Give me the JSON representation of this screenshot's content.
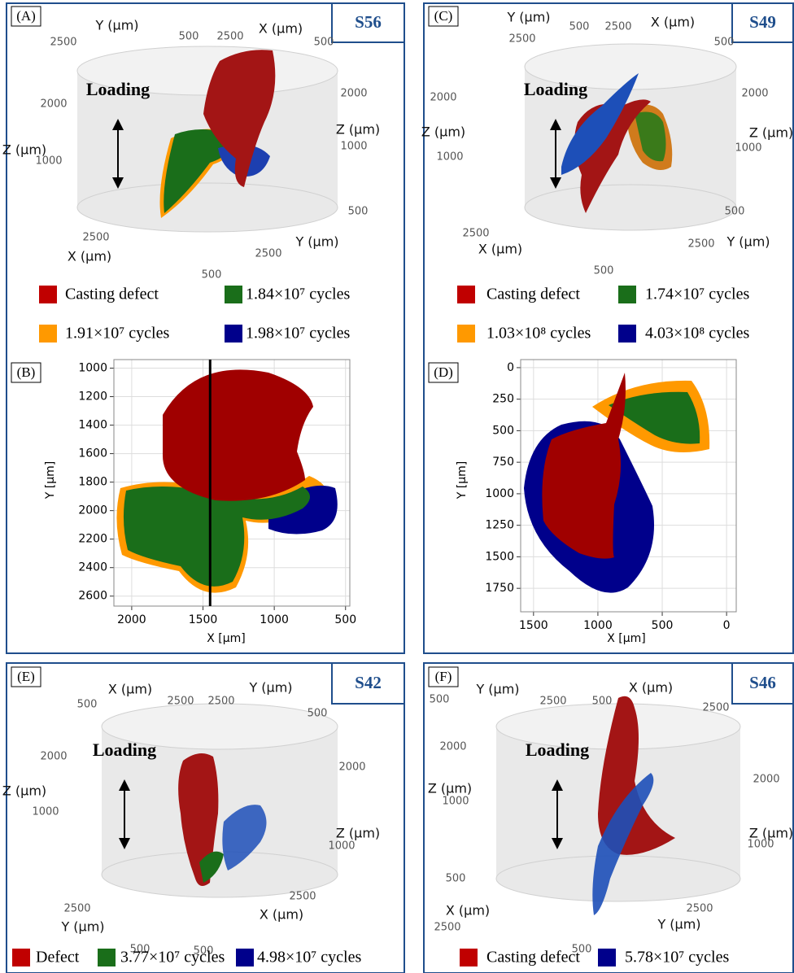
{
  "panels": [
    {
      "label": "(A)",
      "sample": "S56",
      "loading": "Loading",
      "axis_texts": [
        "Y (μm)",
        "500",
        "2500",
        "X (μm)",
        "500",
        "2500",
        "2000",
        "Z (μm)",
        "1000",
        "2000",
        "Z (μm)",
        "1000",
        "500",
        "2500",
        "X (μm)",
        "Y (μm)",
        "2500",
        "500"
      ],
      "legend": [
        {
          "name": "Casting defect",
          "color": "#c00000"
        },
        {
          "name": "1.84×10⁷ cycles",
          "color": "#1a6e1a"
        },
        {
          "name": "1.91×10⁷ cycles",
          "color": "#ff9900"
        },
        {
          "name": "1.98×10⁷ cycles",
          "color": "#00008b"
        }
      ]
    },
    {
      "label": "(C)",
      "sample": "S49",
      "loading": "Loading",
      "axis_texts": [
        "Y (μm)",
        "2500",
        "500",
        "2500",
        "X (μm)",
        "500",
        "2000",
        "Z (μm)",
        "1000",
        "2000",
        "Z (μm)",
        "1000",
        "500",
        "2500",
        "X (μm)",
        "Y (μm)",
        "2500",
        "500"
      ],
      "legend": [
        {
          "name": "Casting defect",
          "color": "#c00000"
        },
        {
          "name": "1.74×10⁷ cycles",
          "color": "#1a6e1a"
        },
        {
          "name": "1.03×10⁸ cycles",
          "color": "#ff9900"
        },
        {
          "name": "4.03×10⁸ cycles",
          "color": "#00008b"
        }
      ]
    },
    {
      "label": "(E)",
      "sample": "S42",
      "loading": "Loading",
      "axis_texts": [
        "X (μm)",
        "500",
        "2500",
        "2500",
        "Y (μm)",
        "500",
        "2000",
        "Z (μm)",
        "1000",
        "2000",
        "Z (μm)",
        "1000",
        "2500",
        "Y (μm)",
        "2500",
        "X (μm)",
        "500",
        "500"
      ],
      "legend": [
        {
          "name": "Defect",
          "color": "#c00000"
        },
        {
          "name": "3.77×10⁷ cycles",
          "color": "#1a6e1a"
        },
        {
          "name": "4.98×10⁷ cycles",
          "color": "#00008b"
        }
      ]
    },
    {
      "label": "(F)",
      "sample": "S46",
      "loading": "Loading",
      "axis_texts": [
        "500",
        "Y (μm)",
        "2500",
        "500",
        "X (μm)",
        "2500",
        "2000",
        "Z (μm)",
        "1000",
        "2000",
        "Z (μm)",
        "1000",
        "500",
        "X (μm)",
        "2500",
        "2500",
        "Y (μm)",
        "500"
      ],
      "legend": [
        {
          "name": "Casting defect",
          "color": "#c00000"
        },
        {
          "name": "5.78×10⁷ cycles",
          "color": "#00008b"
        }
      ]
    }
  ],
  "plots": [
    {
      "label": "(B)",
      "type": "scatter",
      "xlabel": "X [μm]",
      "ylabel": "Y [μm]",
      "xlim": [
        2125,
        470
      ],
      "ylim": [
        2670,
        940
      ],
      "xticks": [
        2000,
        1500,
        1000,
        500
      ],
      "yticks": [
        1000,
        1200,
        1400,
        1600,
        1800,
        2000,
        2200,
        2400,
        2600
      ],
      "grid": true,
      "section_line_x": 1450
    },
    {
      "label": "(D)",
      "type": "scatter",
      "xlabel": "X [μm]",
      "ylabel": "Y [μm]",
      "xlim": [
        1600,
        -75
      ],
      "ylim": [
        1936,
        -64
      ],
      "xticks": [
        1500,
        1000,
        500,
        0
      ],
      "yticks": [
        0,
        250,
        500,
        750,
        1000,
        1250,
        1500,
        1750
      ],
      "grid": true
    }
  ]
}
